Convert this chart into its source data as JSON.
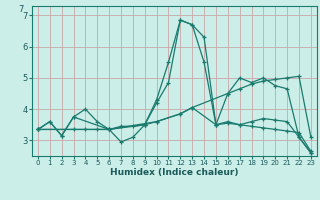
{
  "xlabel": "Humidex (Indice chaleur)",
  "bg_color": "#cceee8",
  "line_color": "#1a7a6e",
  "grid_color_v": "#c8a8a8",
  "grid_color_h": "#c8a8a8",
  "xlim": [
    -0.5,
    23.5
  ],
  "ylim": [
    2.5,
    7.3
  ],
  "xticks": [
    0,
    1,
    2,
    3,
    4,
    5,
    6,
    7,
    8,
    9,
    10,
    11,
    12,
    13,
    14,
    15,
    16,
    17,
    18,
    19,
    20,
    21,
    22,
    23
  ],
  "yticks": [
    3,
    4,
    5,
    6,
    7
  ],
  "lines": [
    {
      "x": [
        0,
        1,
        2,
        3,
        4,
        5,
        6,
        7,
        8,
        9,
        10,
        11,
        12,
        13,
        14,
        15,
        16,
        17,
        18,
        19,
        20,
        21,
        22,
        23
      ],
      "y": [
        3.35,
        3.6,
        3.15,
        3.75,
        4.0,
        3.6,
        3.35,
        2.95,
        3.1,
        3.5,
        4.3,
        5.5,
        6.85,
        6.7,
        6.3,
        3.5,
        3.6,
        3.5,
        3.6,
        3.7,
        3.65,
        3.6,
        3.1,
        2.6
      ]
    },
    {
      "x": [
        0,
        6,
        10,
        12,
        13,
        16,
        17,
        18,
        19,
        20,
        21,
        22,
        23
      ],
      "y": [
        3.35,
        3.35,
        3.6,
        3.85,
        4.05,
        4.5,
        4.65,
        4.8,
        4.9,
        4.95,
        5.0,
        5.05,
        3.1
      ]
    },
    {
      "x": [
        0,
        3,
        4,
        5,
        6,
        7,
        8,
        9,
        10,
        11,
        12,
        13,
        14,
        15,
        16,
        17,
        18,
        19,
        20,
        21,
        22,
        23
      ],
      "y": [
        3.35,
        3.35,
        3.35,
        3.35,
        3.35,
        3.45,
        3.45,
        3.5,
        4.2,
        4.85,
        6.85,
        6.7,
        5.5,
        3.5,
        4.5,
        5.0,
        4.85,
        5.0,
        4.75,
        4.65,
        3.1,
        2.6
      ]
    },
    {
      "x": [
        0,
        1,
        2,
        3,
        6,
        9,
        10,
        12,
        13,
        15,
        16,
        17,
        18,
        19,
        20,
        21,
        22,
        23
      ],
      "y": [
        3.35,
        3.6,
        3.15,
        3.75,
        3.35,
        3.5,
        3.6,
        3.85,
        4.05,
        3.5,
        3.55,
        3.5,
        3.45,
        3.4,
        3.35,
        3.3,
        3.25,
        2.65
      ]
    }
  ]
}
